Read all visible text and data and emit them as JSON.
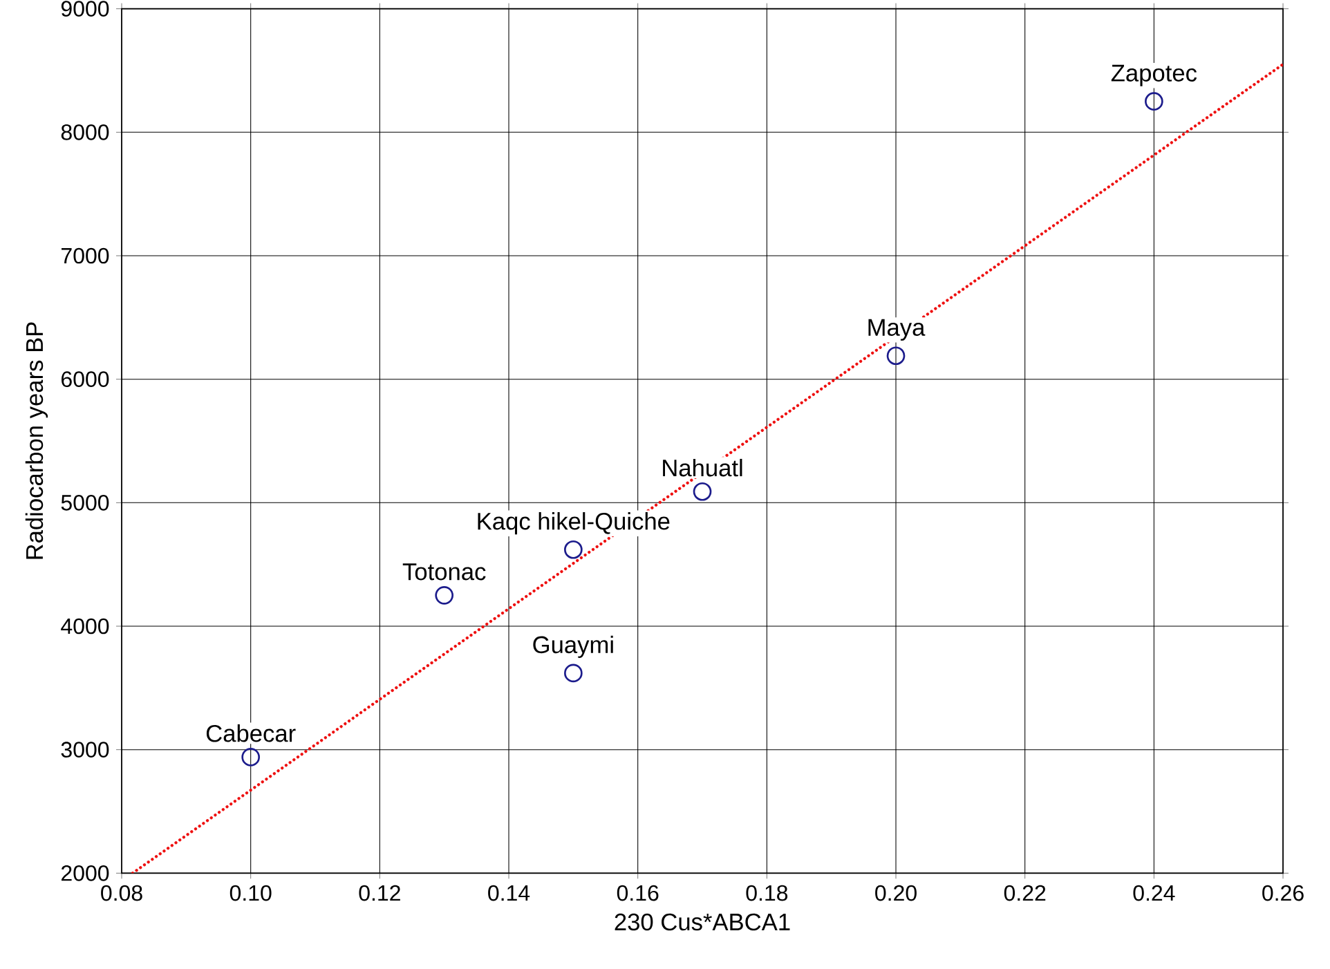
{
  "chart_data": {
    "type": "scatter",
    "xlabel": "230 Cus*ABCA1",
    "ylabel": "Radiocarbon years BP",
    "xlim": [
      0.08,
      0.26
    ],
    "ylim": [
      2000,
      9000
    ],
    "xticks": [
      0.08,
      {
        "value": 0.1,
        "label": "0.10"
      },
      0.12,
      0.14,
      0.16,
      0.18,
      {
        "value": 0.2,
        "label": "0.20"
      },
      0.22,
      0.24,
      0.26
    ],
    "yticks": [
      2000,
      3000,
      4000,
      5000,
      6000,
      7000,
      8000,
      9000
    ],
    "grid": true,
    "series": [
      {
        "color": "#1c1c8c",
        "marker": "circle",
        "x": [
          0.1,
          0.13,
          0.15,
          0.15,
          0.17,
          0.2,
          0.24
        ],
        "values": [
          2940,
          4250,
          3620,
          4620,
          5090,
          6190,
          8250
        ]
      },
      {
        "type": "line",
        "color": "#ee1111",
        "marker": "none",
        "line_style": "dotted",
        "x": [
          0.0817,
          0.26
        ],
        "values": [
          2000,
          8550
        ]
      }
    ],
    "annotations": [
      {
        "text": "Cabecar",
        "x": 0.1,
        "y": 2940
      },
      {
        "text": "Totonac",
        "x": 0.13,
        "y": 4250
      },
      {
        "text": "Guaymi",
        "x": 0.15,
        "y": 3620
      },
      {
        "text": "Kaqc hikel-Quiche",
        "x": 0.15,
        "y": 4620
      },
      {
        "text": "Nahuatl",
        "x": 0.17,
        "y": 5090
      },
      {
        "text": "Maya",
        "x": 0.2,
        "y": 6190
      },
      {
        "text": "Zapotec",
        "x": 0.24,
        "y": 8250
      }
    ]
  }
}
